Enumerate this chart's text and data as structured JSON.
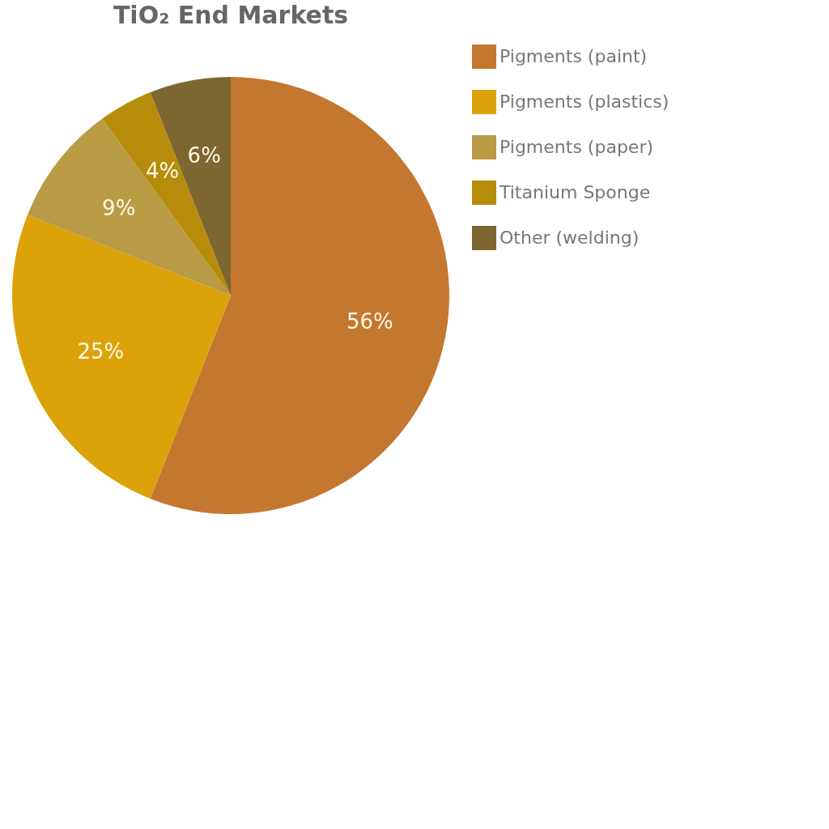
{
  "chart_data": {
    "type": "pie",
    "title": "TiO₂ End Markets",
    "categories": [
      "Pigments (paint)",
      "Pigments (plastics)",
      "Pigments (paper)",
      "Titanium Sponge",
      "Other (welding)"
    ],
    "values": [
      56,
      25,
      9,
      4,
      6
    ],
    "value_labels": [
      "56%",
      "25%",
      "9%",
      "4%",
      "6%"
    ],
    "colors": [
      "#c4772e",
      "#dba20a",
      "#b99a45",
      "#b68d0b",
      "#7d6630"
    ],
    "legend": "right"
  }
}
